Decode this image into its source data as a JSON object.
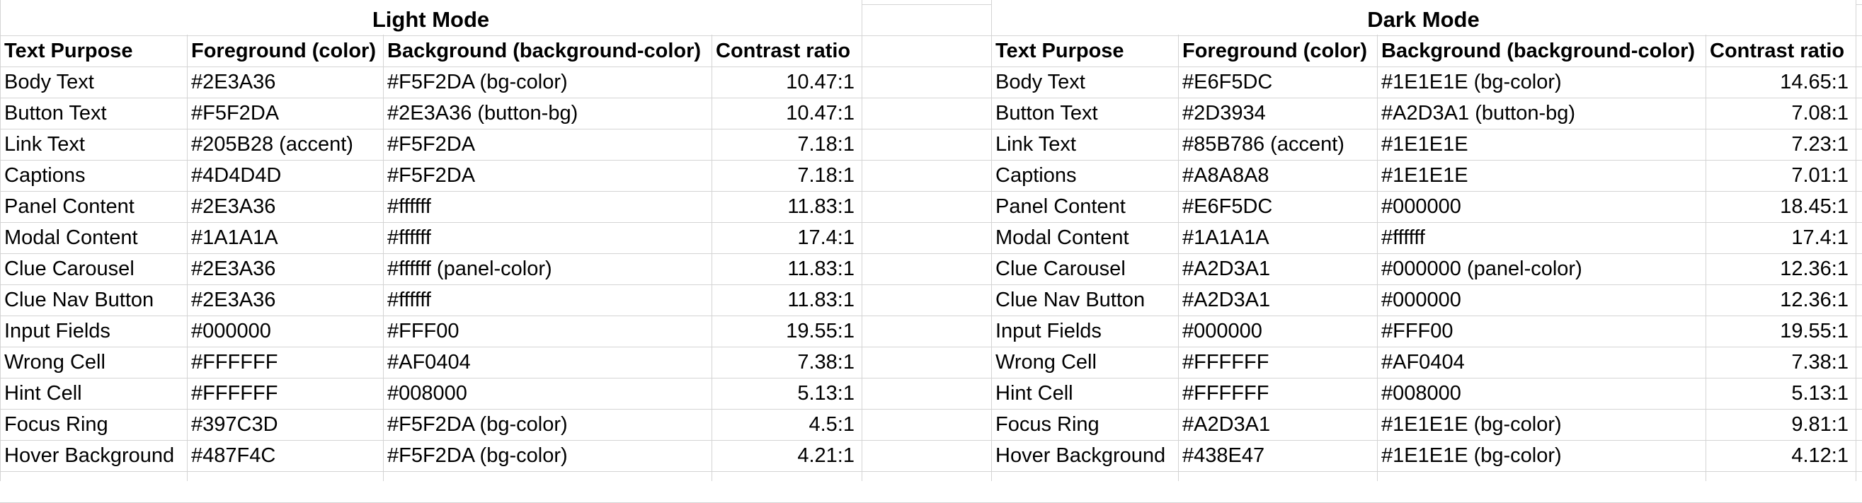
{
  "light": {
    "title": "Light Mode",
    "headers": [
      "Text Purpose",
      "Foreground (color)",
      "Background (background-color)",
      "Contrast ratio"
    ],
    "rows": [
      [
        "Body Text",
        "#2E3A36",
        "#F5F2DA (bg-color)",
        "10.47:1"
      ],
      [
        "Button Text",
        "#F5F2DA",
        "#2E3A36 (button-bg)",
        "10.47:1"
      ],
      [
        "Link Text",
        "#205B28 (accent)",
        "#F5F2DA",
        "7.18:1"
      ],
      [
        "Captions",
        "#4D4D4D",
        "#F5F2DA",
        "7.18:1"
      ],
      [
        "Panel Content",
        "#2E3A36",
        "#ffffff",
        "11.83:1"
      ],
      [
        "Modal Content",
        "#1A1A1A",
        "#ffffff",
        "17.4:1"
      ],
      [
        "Clue Carousel",
        "#2E3A36",
        "#ffffff (panel-color)",
        "11.83:1"
      ],
      [
        "Clue Nav Button",
        "#2E3A36",
        "#ffffff",
        "11.83:1"
      ],
      [
        "Input Fields",
        "#000000",
        "#FFF00",
        "19.55:1"
      ],
      [
        "Wrong Cell",
        "#FFFFFF",
        "#AF0404",
        "7.38:1"
      ],
      [
        "Hint Cell",
        "#FFFFFF",
        "#008000",
        "5.13:1"
      ],
      [
        "Focus Ring",
        "#397C3D",
        "#F5F2DA (bg-color)",
        "4.5:1"
      ],
      [
        "Hover Background",
        "#487F4C",
        "#F5F2DA (bg-color)",
        "4.21:1"
      ]
    ]
  },
  "dark": {
    "title": "Dark Mode",
    "headers": [
      "Text Purpose",
      "Foreground (color)",
      "Background (background-color)",
      "Contrast ratio"
    ],
    "rows": [
      [
        "Body Text",
        "#E6F5DC",
        "#1E1E1E (bg-color)",
        "14.65:1"
      ],
      [
        "Button Text",
        "#2D3934",
        "#A2D3A1 (button-bg)",
        "7.08:1"
      ],
      [
        "Link Text",
        "#85B786 (accent)",
        "#1E1E1E",
        "7.23:1"
      ],
      [
        "Captions",
        "#A8A8A8",
        "#1E1E1E",
        "7.01:1"
      ],
      [
        "Panel Content",
        "#E6F5DC",
        "#000000",
        "18.45:1"
      ],
      [
        "Modal Content",
        "#1A1A1A",
        "#ffffff",
        "17.4:1"
      ],
      [
        "Clue Carousel",
        "#A2D3A1",
        "#000000 (panel-color)",
        "12.36:1"
      ],
      [
        "Clue Nav Button",
        "#A2D3A1",
        "#000000",
        "12.36:1"
      ],
      [
        "Input Fields",
        "#000000",
        "#FFF00",
        "19.55:1"
      ],
      [
        "Wrong Cell",
        "#FFFFFF",
        "#AF0404",
        "7.38:1"
      ],
      [
        "Hint Cell",
        "#FFFFFF",
        "#008000",
        "5.13:1"
      ],
      [
        "Focus Ring",
        "#A2D3A1",
        "#1E1E1E (bg-color)",
        "9.81:1"
      ],
      [
        "Hover Background",
        "#438E47",
        "#1E1E1E (bg-color)",
        "4.12:1"
      ]
    ]
  },
  "gridline_color": "#d4d4d4"
}
